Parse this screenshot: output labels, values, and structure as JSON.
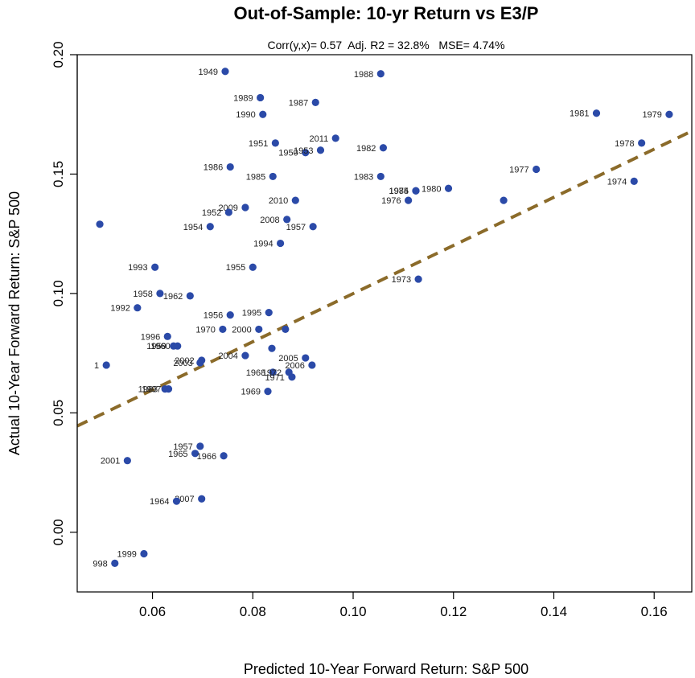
{
  "chart_data": {
    "type": "scatter",
    "title": "Out-of-Sample: 10-yr Return vs E3/P",
    "subtitle": "Corr(y,x)= 0.57  Adj. R2 = 32.8%   MSE= 4.74%",
    "xlabel": "Predicted 10-Year Forward Return: S&P 500",
    "ylabel": "Actual 10-Year Forward Return: S&P 500",
    "xlim": [
      0.045,
      0.1675
    ],
    "ylim": [
      -0.025,
      0.2
    ],
    "xticks": [
      0.06,
      0.08,
      0.1,
      0.12,
      0.14,
      0.16
    ],
    "xtick_labels": [
      "0.06",
      "0.08",
      "0.10",
      "0.12",
      "0.14",
      "0.16"
    ],
    "yticks": [
      0.0,
      0.05,
      0.1,
      0.15,
      0.2
    ],
    "ytick_labels": [
      "0.00",
      "0.05",
      "0.10",
      "0.15",
      "0.20"
    ],
    "grid": false,
    "point_color": "#2b4aa8",
    "fit_line_color": "#8b6b2a",
    "fit_line": {
      "x": [
        0.045,
        0.1675
      ],
      "y": [
        0.0445,
        0.168
      ]
    },
    "points": [
      {
        "label": "1949",
        "x": 0.0745,
        "y": 0.193
      },
      {
        "label": "1988",
        "x": 0.1055,
        "y": 0.192
      },
      {
        "label": "1989",
        "x": 0.0815,
        "y": 0.182
      },
      {
        "label": "1987",
        "x": 0.0925,
        "y": 0.18
      },
      {
        "label": "1990",
        "x": 0.082,
        "y": 0.175
      },
      {
        "label": "1981",
        "x": 0.1485,
        "y": 0.1755
      },
      {
        "label": "1979",
        "x": 0.163,
        "y": 0.175
      },
      {
        "label": "1951",
        "x": 0.0845,
        "y": 0.163
      },
      {
        "label": "2011",
        "x": 0.0965,
        "y": 0.165
      },
      {
        "label": "1950",
        "x": 0.0905,
        "y": 0.159
      },
      {
        "label": "1953",
        "x": 0.0935,
        "y": 0.16
      },
      {
        "label": "1982",
        "x": 0.106,
        "y": 0.161
      },
      {
        "label": "1978",
        "x": 0.1575,
        "y": 0.163
      },
      {
        "label": "1986",
        "x": 0.0755,
        "y": 0.153
      },
      {
        "label": "1985",
        "x": 0.084,
        "y": 0.149
      },
      {
        "label": "1983",
        "x": 0.1055,
        "y": 0.149
      },
      {
        "label": "1977",
        "x": 0.1365,
        "y": 0.152
      },
      {
        "label": "1974",
        "x": 0.156,
        "y": 0.147
      },
      {
        "label": "1975",
        "x": 0.1125,
        "y": 0.143
      },
      {
        "label": "1984",
        "x": 0.1125,
        "y": 0.143
      },
      {
        "label": "1980",
        "x": 0.119,
        "y": 0.144
      },
      {
        "label": "1976",
        "x": 0.111,
        "y": 0.139
      },
      {
        "label": "2010",
        "x": 0.0885,
        "y": 0.139
      },
      {
        "label": "2009",
        "x": 0.0785,
        "y": 0.136
      },
      {
        "label": "1952",
        "x": 0.0752,
        "y": 0.134
      },
      {
        "label": "2008",
        "x": 0.0868,
        "y": 0.131
      },
      {
        "label": "1957",
        "x": 0.092,
        "y": 0.128
      },
      {
        "label": "1954",
        "x": 0.0715,
        "y": 0.128
      },
      {
        "label": "",
        "x": 0.0495,
        "y": 0.129
      },
      {
        "label": "",
        "x": 0.13,
        "y": 0.139
      },
      {
        "label": "1994",
        "x": 0.0855,
        "y": 0.121
      },
      {
        "label": "1993",
        "x": 0.0605,
        "y": 0.111
      },
      {
        "label": "1955",
        "x": 0.08,
        "y": 0.111
      },
      {
        "label": "1973",
        "x": 0.113,
        "y": 0.106
      },
      {
        "label": "1958",
        "x": 0.0615,
        "y": 0.1
      },
      {
        "label": "1962",
        "x": 0.0675,
        "y": 0.099
      },
      {
        "label": "1992",
        "x": 0.057,
        "y": 0.094
      },
      {
        "label": "1956",
        "x": 0.0755,
        "y": 0.091
      },
      {
        "label": "1995",
        "x": 0.0832,
        "y": 0.092
      },
      {
        "label": "1996",
        "x": 0.063,
        "y": 0.082
      },
      {
        "label": "1970",
        "x": 0.074,
        "y": 0.085
      },
      {
        "label": "2000",
        "x": 0.0812,
        "y": 0.085
      },
      {
        "label": "",
        "x": 0.0865,
        "y": 0.085
      },
      {
        "label": "1960",
        "x": 0.065,
        "y": 0.078
      },
      {
        "label": "1959",
        "x": 0.0642,
        "y": 0.078
      },
      {
        "label": "2004",
        "x": 0.0785,
        "y": 0.074
      },
      {
        "label": "2003",
        "x": 0.0695,
        "y": 0.071
      },
      {
        "label": "",
        "x": 0.0838,
        "y": 0.077
      },
      {
        "label": "2005",
        "x": 0.0905,
        "y": 0.073
      },
      {
        "label": "2006",
        "x": 0.0918,
        "y": 0.07
      },
      {
        "label": "1",
        "x": 0.0508,
        "y": 0.07
      },
      {
        "label": "2002",
        "x": 0.0698,
        "y": 0.072
      },
      {
        "label": "1968",
        "x": 0.084,
        "y": 0.067
      },
      {
        "label": "1972",
        "x": 0.0872,
        "y": 0.067
      },
      {
        "label": "1971",
        "x": 0.0878,
        "y": 0.065
      },
      {
        "label": "1969",
        "x": 0.083,
        "y": 0.059
      },
      {
        "label": "1963",
        "x": 0.0625,
        "y": 0.06
      },
      {
        "label": "1997",
        "x": 0.0632,
        "y": 0.06
      },
      {
        "label": "1957",
        "x": 0.0695,
        "y": 0.036
      },
      {
        "label": "1965",
        "x": 0.0685,
        "y": 0.033
      },
      {
        "label": "1966",
        "x": 0.0742,
        "y": 0.032
      },
      {
        "label": "2001",
        "x": 0.055,
        "y": 0.03
      },
      {
        "label": "2007",
        "x": 0.0698,
        "y": 0.014
      },
      {
        "label": "1964",
        "x": 0.0648,
        "y": 0.013
      },
      {
        "label": "1999",
        "x": 0.0583,
        "y": -0.009
      },
      {
        "label": "998",
        "x": 0.0525,
        "y": -0.013
      }
    ]
  }
}
